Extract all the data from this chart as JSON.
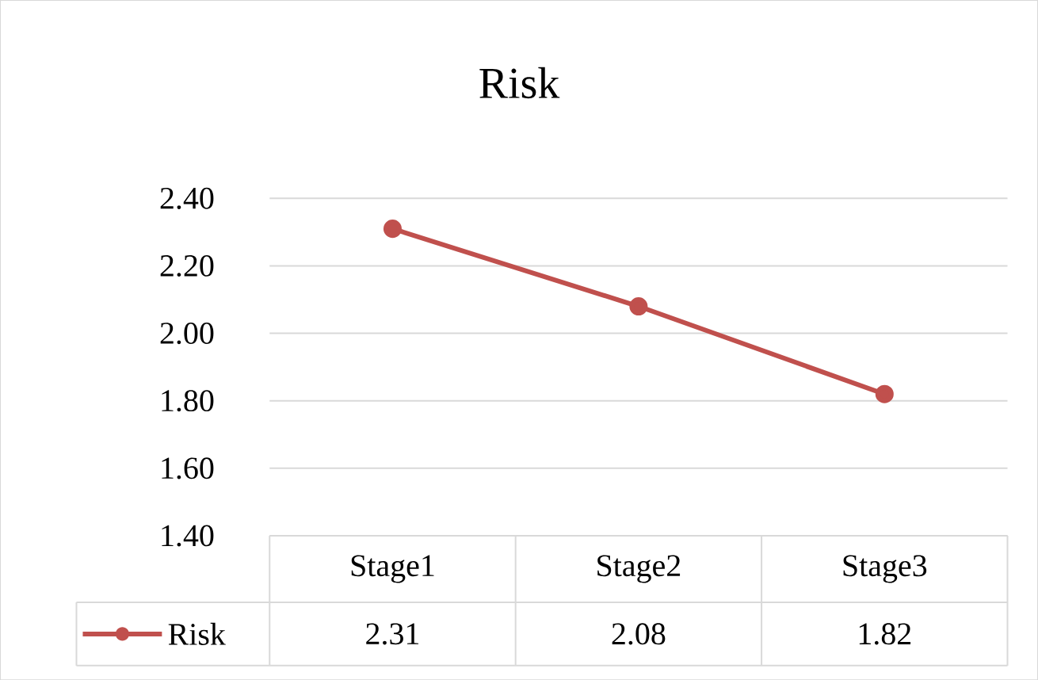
{
  "chart_data": {
    "type": "line",
    "title": "Risk",
    "categories": [
      "Stage1",
      "Stage2",
      "Stage3"
    ],
    "series": [
      {
        "name": "Risk",
        "color": "#c0504d",
        "values": [
          2.31,
          2.08,
          1.82
        ],
        "value_labels": [
          "2.31",
          "2.08",
          "1.82"
        ]
      }
    ],
    "ylim": [
      1.4,
      2.4
    ],
    "yticks": [
      {
        "value": 1.4,
        "label": "1.40"
      },
      {
        "value": 1.6,
        "label": "1.60"
      },
      {
        "value": 1.8,
        "label": "1.80"
      },
      {
        "value": 2.0,
        "label": "2.00"
      },
      {
        "value": 2.2,
        "label": "2.20"
      },
      {
        "value": 2.4,
        "label": "2.40"
      }
    ],
    "grid": "y",
    "legend": "bottom left",
    "marker": "circle",
    "line_style": "solid"
  }
}
